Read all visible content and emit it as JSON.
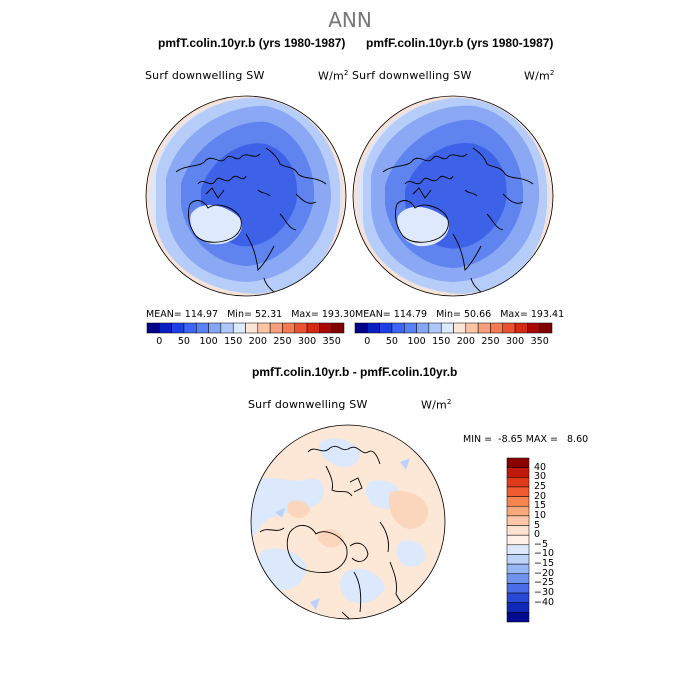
{
  "title": "ANN",
  "panels": [
    {
      "case_title": "pmfT.colin.10yr.b (yrs 1980-1987)",
      "variable": "Surf downwelling SW",
      "units_base": "W/m",
      "units_exp": "2",
      "stats": {
        "mean_label": "MEAN=",
        "mean": "114.97",
        "min_label": "Min=",
        "min": "52.31",
        "max_label": "Max=",
        "max": "193.30"
      }
    },
    {
      "case_title": "pmfF.colin.10yr.b (yrs 1980-1987)",
      "variable": "Surf downwelling SW",
      "units_base": "W/m",
      "units_exp": "2",
      "stats": {
        "mean_label": "MEAN=",
        "mean": "114.79",
        "min_label": "Min=",
        "min": "50.66",
        "max_label": "Max=",
        "max": "193.41"
      }
    }
  ],
  "abs_colorbar": {
    "colors": [
      "#00008b",
      "#0a1fc2",
      "#1e3ee6",
      "#3c64f0",
      "#5a82f5",
      "#82a5f8",
      "#afc8fb",
      "#dce8fd",
      "#fde4d6",
      "#fcc4a7",
      "#f9a07a",
      "#f57a50",
      "#ee5030",
      "#d72a14",
      "#a80a05",
      "#800000"
    ],
    "ticks": [
      "0",
      "50",
      "100",
      "150",
      "200",
      "250",
      "300",
      "350"
    ]
  },
  "difference": {
    "title": "pmfT.colin.10yr.b - pmfF.colin.10yr.b",
    "variable": "Surf downwelling SW",
    "units_base": "W/m",
    "units_exp": "2",
    "min_label": "MIN =",
    "min": "-8.65",
    "max_label": "MAX =",
    "max": "8.60",
    "colorbar": {
      "colors_top_to_bottom": [
        "#8b0000",
        "#c0180a",
        "#e03a1a",
        "#f25a30",
        "#f7834f",
        "#fba77c",
        "#fdc7a8",
        "#fde2d0",
        "#fef0e6",
        "#dce8fb",
        "#bcd2f8",
        "#97b6f4",
        "#6f92ef",
        "#4a6ce8",
        "#2848d8",
        "#1028b8",
        "#000a90"
      ],
      "labels_top_to_bottom": [
        "40",
        "30",
        "25",
        "20",
        "15",
        "10",
        "5",
        "0",
        "−5",
        "−10",
        "−15",
        "−20",
        "−25",
        "−30",
        "−40"
      ]
    }
  }
}
